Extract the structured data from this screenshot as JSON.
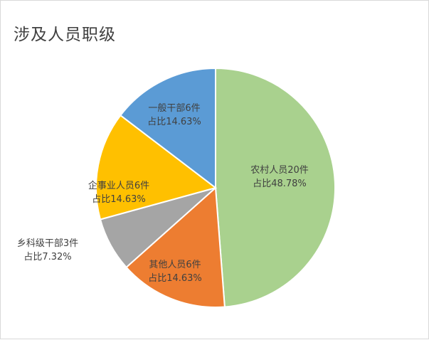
{
  "chart_data": {
    "type": "pie",
    "title": "涉及人员职级",
    "slices": [
      {
        "name": "农村人员",
        "count_label": "20件",
        "value": 20,
        "percent": 48.78,
        "percent_label": "占比48.78%",
        "color": "#a9d18e"
      },
      {
        "name": "其他人员",
        "count_label": "6件",
        "value": 6,
        "percent": 14.63,
        "percent_label": "占比14.63%",
        "color": "#ed7d31"
      },
      {
        "name": "乡科级干部",
        "count_label": "3件",
        "value": 3,
        "percent": 7.32,
        "percent_label": "占比7.32%",
        "color": "#a5a5a5"
      },
      {
        "name": "企事业人员",
        "count_label": "6件",
        "value": 6,
        "percent": 14.63,
        "percent_label": "占比14.63%",
        "color": "#ffc000"
      },
      {
        "name": "一般干部",
        "count_label": "6件",
        "value": 6,
        "percent": 14.63,
        "percent_label": "占比14.63%",
        "color": "#5b9bd5"
      }
    ],
    "start_angle": "12 o'clock",
    "direction": "clockwise",
    "legend": "none"
  }
}
